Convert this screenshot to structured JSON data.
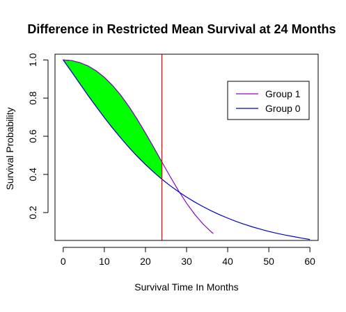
{
  "chart_data": {
    "type": "line",
    "title": "Difference in Restricted Mean Survival at 24 Months",
    "xlabel": "Survival Time In Months",
    "ylabel": "Survival Probability",
    "xlim": [
      -2,
      62
    ],
    "ylim": [
      0.054,
      1.03
    ],
    "x_ticks": [
      0,
      10,
      20,
      30,
      40,
      50,
      60
    ],
    "y_ticks": [
      0.2,
      0.4,
      0.6,
      0.8,
      1.0
    ],
    "y_tick_labels": [
      "0.2",
      "0.4",
      "0.6",
      "0.8",
      "1.0"
    ],
    "restriction_time": 24,
    "restriction_line_color": "#dd0000",
    "shaded_region_color": "#00ff00",
    "legend_position": "top-right",
    "series": [
      {
        "name": "Group 1",
        "color": "#8800cc",
        "x": [
          0,
          2,
          4,
          6,
          8,
          10,
          12,
          14,
          16,
          18,
          20,
          22,
          24,
          26,
          28,
          30,
          32,
          34,
          36,
          36.5
        ],
        "y": [
          1.0,
          0.997,
          0.986,
          0.969,
          0.943,
          0.909,
          0.866,
          0.815,
          0.755,
          0.689,
          0.617,
          0.542,
          0.465,
          0.389,
          0.316,
          0.249,
          0.19,
          0.14,
          0.099,
          0.09
        ]
      },
      {
        "name": "Group 0",
        "color": "#0000cc",
        "x": [
          0,
          2,
          4,
          6,
          8,
          10,
          12,
          14,
          16,
          18,
          20,
          22,
          24,
          26,
          28,
          30,
          32,
          34,
          36,
          38,
          40,
          42,
          44,
          46,
          48,
          50,
          52,
          54,
          56,
          58,
          60
        ],
        "y": [
          1.0,
          0.939,
          0.877,
          0.815,
          0.756,
          0.698,
          0.643,
          0.591,
          0.541,
          0.495,
          0.452,
          0.412,
          0.375,
          0.341,
          0.31,
          0.281,
          0.255,
          0.231,
          0.209,
          0.189,
          0.171,
          0.154,
          0.139,
          0.125,
          0.113,
          0.101,
          0.091,
          0.082,
          0.074,
          0.066,
          0.059
        ]
      }
    ]
  }
}
